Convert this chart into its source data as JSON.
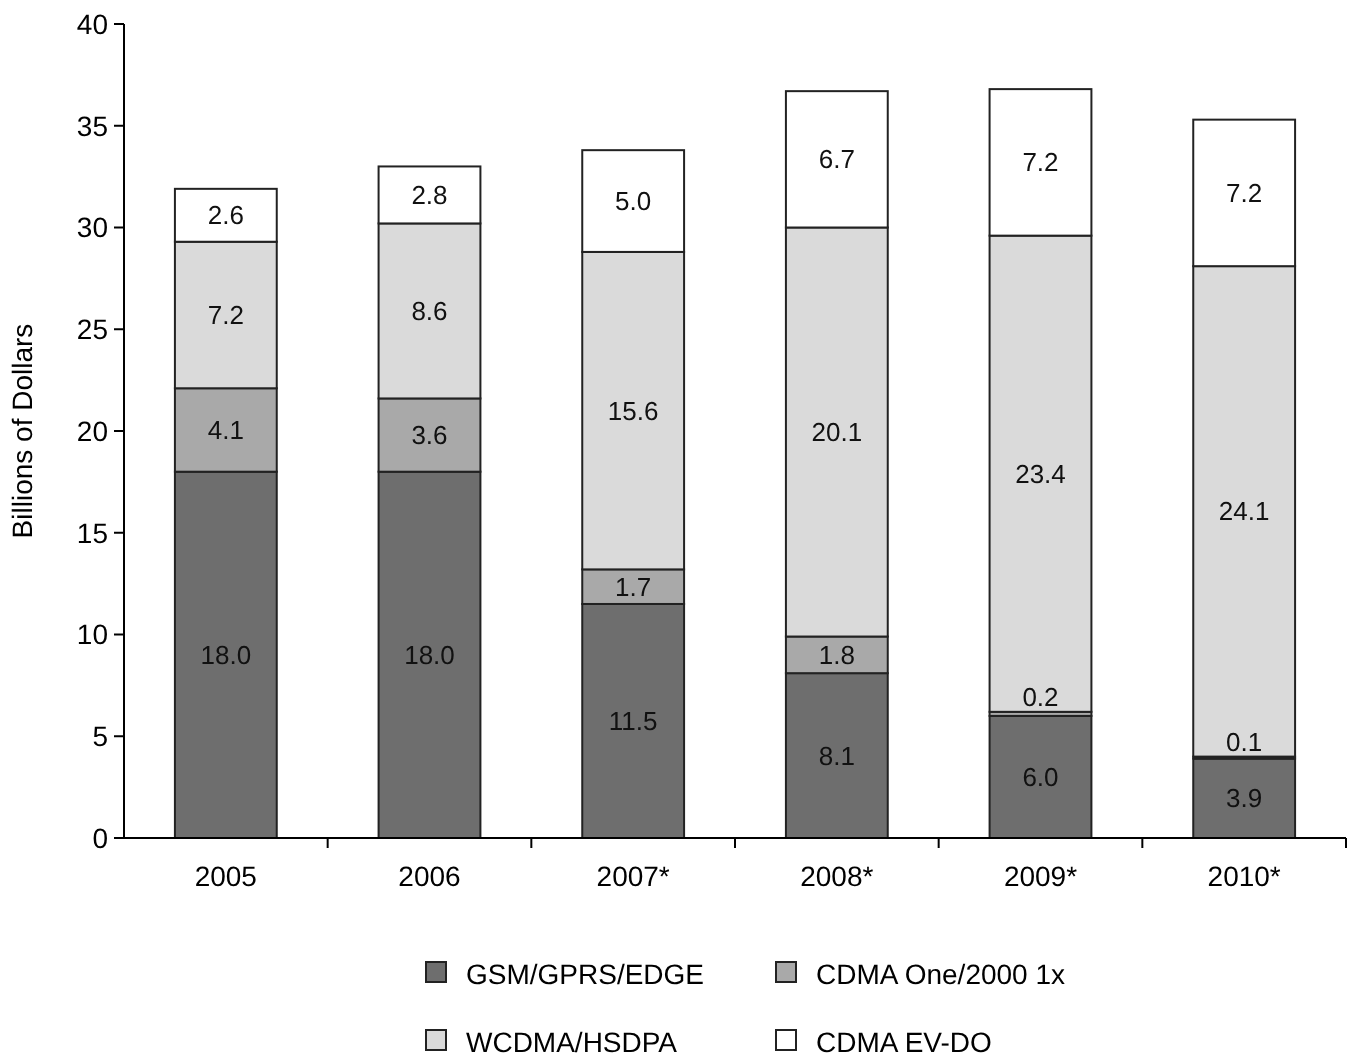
{
  "chart_data": {
    "type": "bar",
    "stacked": true,
    "ylabel": "Billions of Dollars",
    "categories": [
      "2005",
      "2006",
      "2007*",
      "2008*",
      "2009*",
      "2010*"
    ],
    "series": [
      {
        "name": "GSM/GPRS/EDGE",
        "color": "#6e6e6e",
        "values": [
          18.0,
          18.0,
          11.5,
          8.1,
          6.0,
          3.9
        ],
        "value_labels": [
          "18.0",
          "18.0",
          "11.5",
          "8.1",
          "6.0",
          "3.9"
        ]
      },
      {
        "name": "CDMA One/2000 1x",
        "color": "#a9a9a9",
        "values": [
          4.1,
          3.6,
          1.7,
          1.8,
          0.2,
          0.1
        ],
        "value_labels": [
          "4.1",
          "3.6",
          "1.7",
          "1.8",
          "0.2",
          "0.1"
        ]
      },
      {
        "name": "WCDMA/HSDPA",
        "color": "#dadada",
        "values": [
          7.2,
          8.6,
          15.6,
          20.1,
          23.4,
          24.1
        ],
        "value_labels": [
          "7.2",
          "8.6",
          "15.6",
          "20.1",
          "23.4",
          "24.1"
        ]
      },
      {
        "name": "CDMA EV-DO",
        "color": "#ffffff",
        "values": [
          2.6,
          2.8,
          5.0,
          6.7,
          7.2,
          7.2
        ],
        "value_labels": [
          "2.6",
          "2.8",
          "5.0",
          "6.7",
          "7.2",
          "7.2"
        ]
      }
    ],
    "ylim": [
      0,
      40
    ],
    "yticks": [
      0,
      5,
      10,
      15,
      20,
      25,
      30,
      35,
      40
    ],
    "legend": "bottom"
  }
}
